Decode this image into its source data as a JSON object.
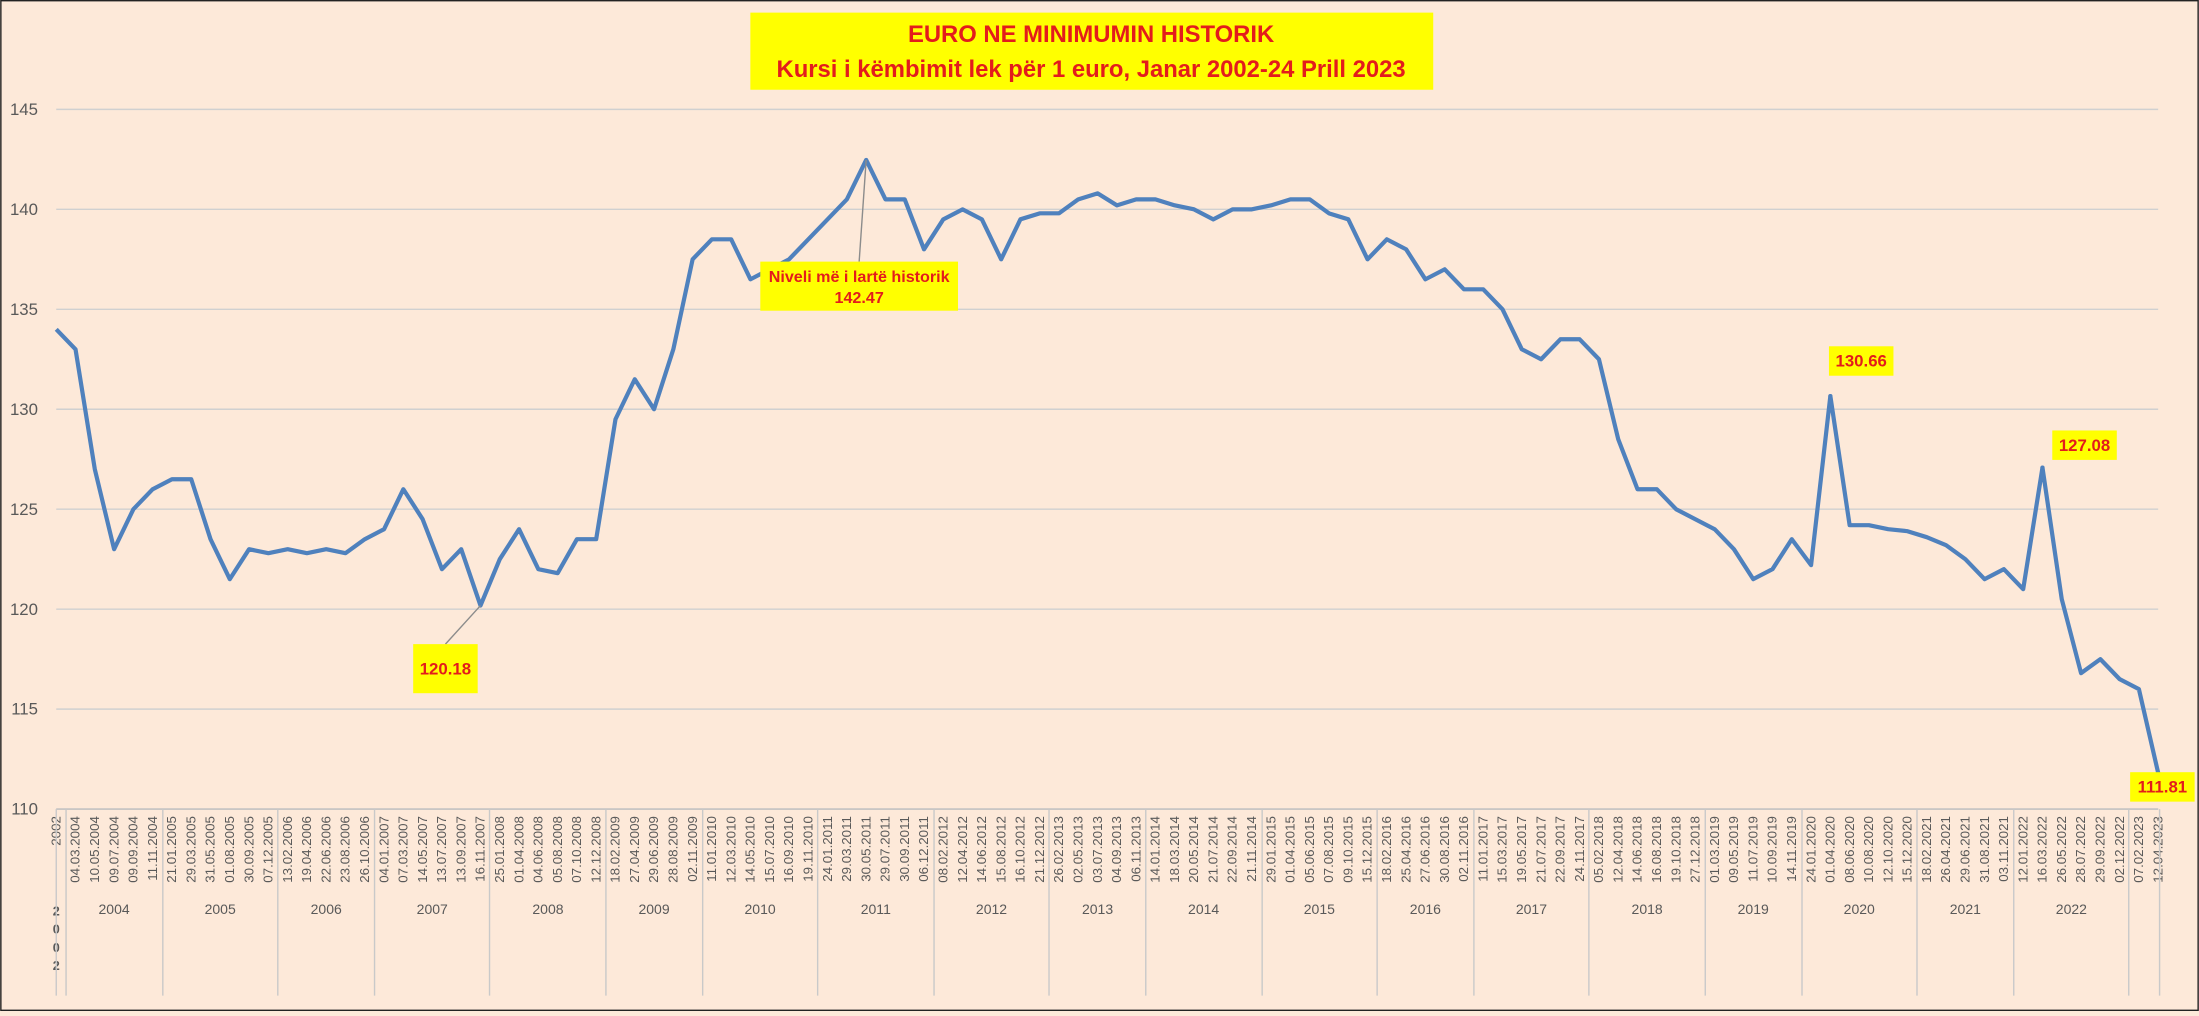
{
  "chart_data": {
    "type": "line",
    "title": "EURO NE MINIMUMIN HISTORIK",
    "subtitle": "Kursi i këmbimit lek për 1 euro, Janar 2002-24 Prill 2023",
    "categories": [
      "2002",
      "04.03.2004",
      "10.05.2004",
      "09.07.2004",
      "09.09.2004",
      "11.11.2004",
      "21.01.2005",
      "29.03.2005",
      "31.05.2005",
      "01.08.2005",
      "30.09.2005",
      "07.12.2005",
      "13.02.2006",
      "19.04.2006",
      "22.06.2006",
      "23.08.2006",
      "26.10.2006",
      "04.01.2007",
      "07.03.2007",
      "14.05.2007",
      "13.07.2007",
      "13.09.2007",
      "16.11.2007",
      "25.01.2008",
      "01.04.2008",
      "04.06.2008",
      "05.08.2008",
      "07.10.2008",
      "12.12.2008",
      "18.02.2009",
      "27.04.2009",
      "29.06.2009",
      "28.08.2009",
      "02.11.2009",
      "11.01.2010",
      "12.03.2010",
      "14.05.2010",
      "15.07.2010",
      "16.09.2010",
      "19.11.2010",
      "24.01.2011",
      "29.03.2011",
      "30.05.2011",
      "29.07.2011",
      "30.09.2011",
      "06.12.2011",
      "08.02.2012",
      "12.04.2012",
      "14.06.2012",
      "15.08.2012",
      "16.10.2012",
      "21.12.2012",
      "26.02.2013",
      "02.05.2013",
      "03.07.2013",
      "04.09.2013",
      "06.11.2013",
      "14.01.2014",
      "18.03.2014",
      "20.05.2014",
      "21.07.2014",
      "22.09.2014",
      "21.11.2014",
      "29.01.2015",
      "01.04.2015",
      "05.06.2015",
      "07.08.2015",
      "09.10.2015",
      "15.12.2015",
      "18.02.2016",
      "25.04.2016",
      "27.06.2016",
      "30.08.2016",
      "02.11.2016",
      "11.01.2017",
      "15.03.2017",
      "19.05.2017",
      "21.07.2017",
      "22.09.2017",
      "24.11.2017",
      "05.02.2018",
      "12.04.2018",
      "14.06.2018",
      "16.08.2018",
      "19.10.2018",
      "27.12.2018",
      "01.03.2019",
      "09.05.2019",
      "11.07.2019",
      "10.09.2019",
      "14.11.2019",
      "24.01.2020",
      "01.04.2020",
      "08.06.2020",
      "10.08.2020",
      "12.10.2020",
      "15.12.2020",
      "18.02.2021",
      "26.04.2021",
      "29.06.2021",
      "31.08.2021",
      "03.11.2021",
      "12.01.2022",
      "16.03.2022",
      "26.05.2022",
      "28.07.2022",
      "29.09.2022",
      "02.12.2022",
      "07.02.2023",
      "12.04.2023"
    ],
    "series": [
      {
        "color": "#4f81bd",
        "values": [
          134,
          133,
          127,
          123,
          125,
          126,
          126.5,
          126.5,
          123.5,
          121.5,
          123,
          122.8,
          123,
          122.8,
          123,
          122.8,
          123.5,
          124,
          126,
          124.5,
          122,
          123,
          120.18,
          122.5,
          124,
          122,
          121.8,
          123.5,
          123.5,
          129.5,
          131.5,
          130,
          133,
          137.5,
          138.5,
          138.5,
          136.5,
          137,
          137.5,
          138.5,
          139.5,
          140.5,
          142.47,
          140.5,
          140.5,
          138,
          139.5,
          140,
          139.5,
          137.5,
          139.5,
          139.8,
          139.8,
          140.5,
          140.8,
          140.2,
          140.5,
          140.5,
          140.2,
          140,
          139.5,
          140,
          140,
          140.2,
          140.5,
          140.5,
          139.8,
          139.5,
          137.5,
          138.5,
          138,
          136.5,
          137,
          136,
          136,
          135,
          133,
          132.5,
          133.5,
          133.5,
          132.5,
          128.5,
          126,
          126,
          125,
          124.5,
          124,
          123,
          121.5,
          122,
          123.5,
          122.2,
          130.66,
          124.2,
          124.2,
          124,
          123.9,
          123.6,
          123.2,
          122.5,
          121.5,
          122,
          121,
          127.08,
          120.5,
          116.8,
          117.5,
          116.5,
          116,
          111.81
        ]
      }
    ],
    "years": [
      "2002",
      "2004",
      "2005",
      "2006",
      "2007",
      "2008",
      "2009",
      "2010",
      "2011",
      "2012",
      "2013",
      "2014",
      "2015",
      "2016",
      "2017",
      "2018",
      "2019",
      "2020",
      "2021",
      "2022"
    ],
    "annotations": [
      {
        "label": "120.18",
        "value": 120.18,
        "x": "16.11.2007"
      },
      {
        "text": "Niveli më i lartë historik",
        "label": "142.47",
        "value": 142.47,
        "x": "30.05.2011"
      },
      {
        "label": "130.66",
        "value": 130.66,
        "x": "01.04.2020"
      },
      {
        "label": "127.08",
        "value": 127.08,
        "x": "16.03.2022"
      },
      {
        "label": "111.81",
        "value": 111.81,
        "x": "12.04.2023"
      }
    ],
    "ylim": [
      110,
      145
    ],
    "yticks": [
      110,
      115,
      120,
      125,
      130,
      135,
      140,
      145
    ],
    "grid": true
  }
}
